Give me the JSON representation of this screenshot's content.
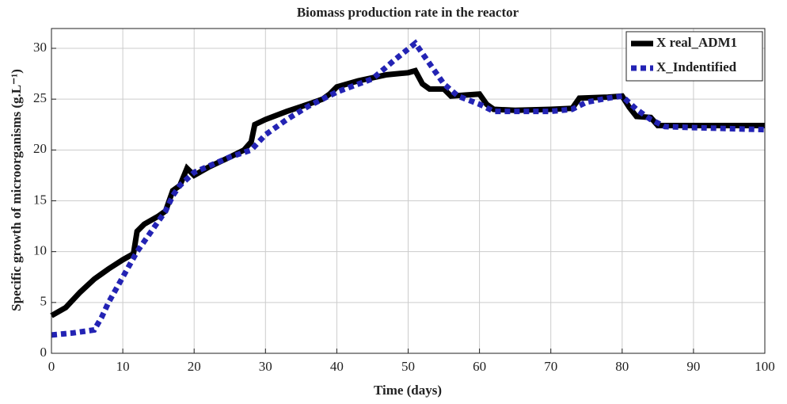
{
  "chart_data": {
    "type": "line",
    "title": "Biomass production rate in the reactor",
    "xlabel": "Time (days)",
    "ylabel": "Specific growth of microorganisms (g.L⁻¹)",
    "xlim": [
      0,
      100
    ],
    "ylim": [
      0,
      30
    ],
    "xticks": [
      0,
      10,
      20,
      30,
      40,
      50,
      60,
      70,
      80,
      90,
      100
    ],
    "yticks": [
      0,
      5,
      10,
      15,
      20,
      25,
      30
    ],
    "grid": true,
    "legend": "upper right",
    "series": [
      {
        "name": "X real_ADM1",
        "color": "#000000",
        "style": "solid",
        "x": [
          0,
          2,
          4,
          6,
          8,
          10,
          11.5,
          12,
          13,
          15,
          16,
          17,
          18,
          19,
          20,
          22,
          25,
          27,
          28,
          28.5,
          30,
          33,
          36,
          38,
          39,
          40,
          43,
          45,
          47,
          50,
          51,
          52,
          53,
          55,
          56,
          58,
          60,
          61,
          62,
          65,
          70,
          73,
          74,
          78,
          80,
          81,
          82,
          84,
          85,
          90,
          100
        ],
        "values": [
          3.7,
          4.5,
          6,
          7.3,
          8.3,
          9.2,
          9.8,
          12,
          12.7,
          13.5,
          14,
          16,
          16.5,
          18.2,
          17.5,
          18.3,
          19.3,
          20,
          20.8,
          22.5,
          23,
          23.8,
          24.5,
          25,
          25.5,
          26.2,
          26.8,
          27.1,
          27.4,
          27.6,
          27.8,
          26.5,
          26,
          26,
          25.3,
          25.4,
          25.5,
          24.5,
          24,
          23.9,
          24,
          24.1,
          25.1,
          25.2,
          25.3,
          24.2,
          23.3,
          23.2,
          22.4,
          22.4,
          22.4
        ]
      },
      {
        "name": "X_Indentified",
        "color": "#2323b4",
        "style": "dotted",
        "x": [
          0,
          3,
          6,
          7,
          8,
          10,
          12,
          14,
          16,
          17,
          18,
          20,
          25,
          28,
          30,
          33,
          36,
          40,
          45,
          48,
          51,
          53,
          55,
          57,
          60,
          62,
          65,
          70,
          73,
          75,
          78,
          80,
          82,
          84,
          86,
          90,
          100
        ],
        "values": [
          1.8,
          2,
          2.3,
          3.5,
          5,
          7.5,
          10,
          12,
          14,
          15.5,
          16.5,
          17.8,
          19.3,
          20,
          21.5,
          23,
          24.3,
          25.7,
          27,
          28.8,
          30.5,
          28.5,
          26.5,
          25.3,
          24.5,
          23.8,
          23.8,
          23.8,
          24,
          24.7,
          25.1,
          25.3,
          24,
          23,
          22.3,
          22.2,
          22
        ]
      }
    ]
  }
}
